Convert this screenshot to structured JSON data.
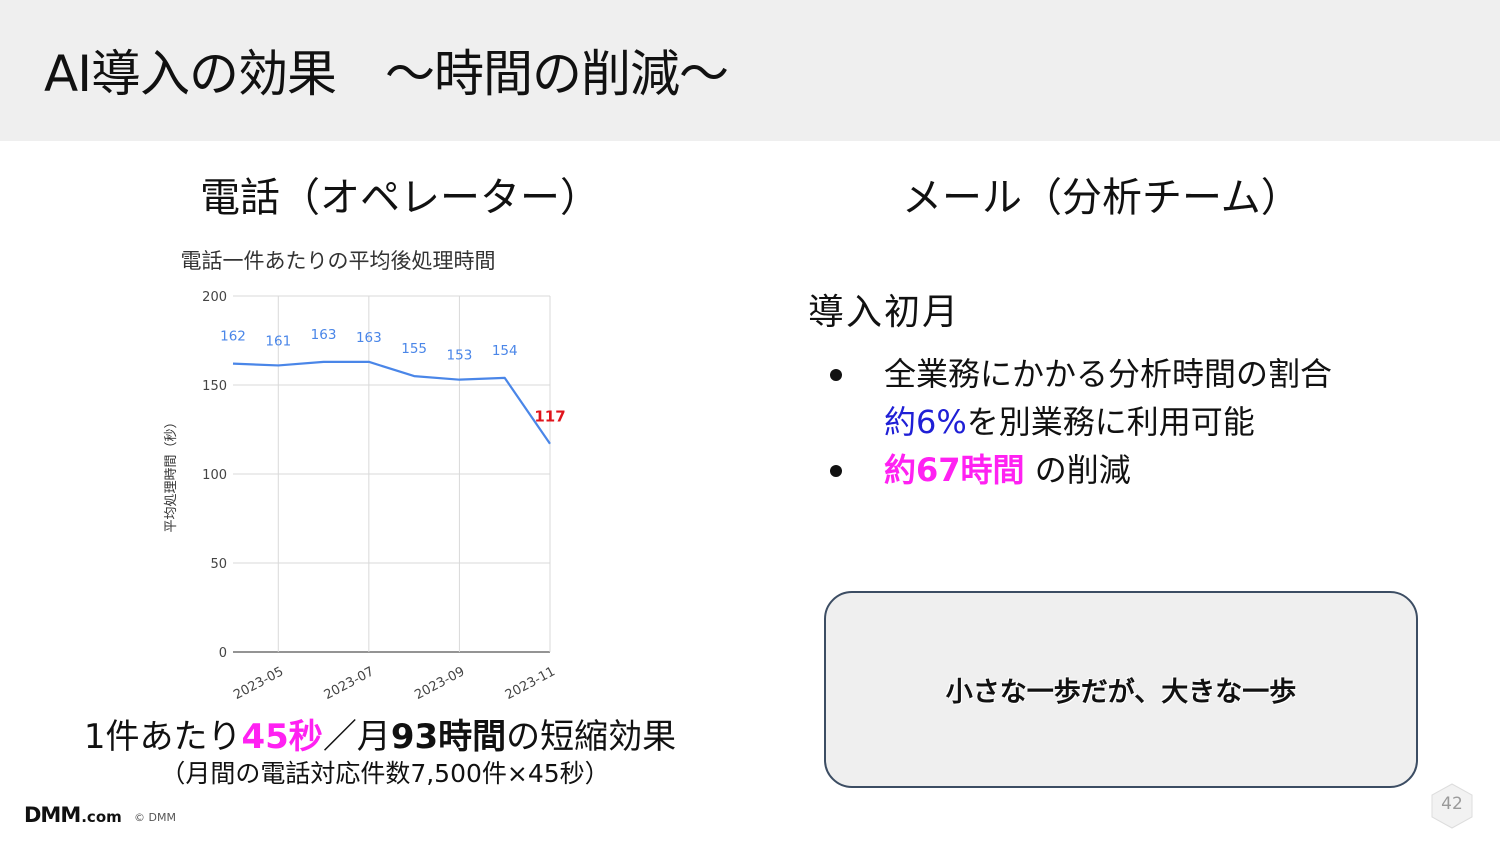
{
  "slide": {
    "title": "AI導入の効果　～時間の削減～",
    "page_number": "42"
  },
  "left": {
    "heading": "電話（オペレーター）",
    "summary": {
      "part1": "1件あたり",
      "part2": "45秒",
      "part3": "／月",
      "part4": "93時間",
      "part5": "の短縮効果"
    },
    "summary_sub": "（月間の電話対応件数7,500件×45秒）"
  },
  "right": {
    "heading": "メール（分析チーム）",
    "first_month": "導入初月",
    "bullets": [
      {
        "line1": "全業務にかかる分析時間の割合",
        "line2_highlight": "約6%",
        "line2_rest": "を別業務に利用可能"
      },
      {
        "highlight": "約67時間",
        "rest": "の削減"
      }
    ],
    "callout": "小さな一歩だが、大きな一歩"
  },
  "footer": {
    "logo_main": "DMM",
    "logo_suffix": ".com",
    "copyright": "© DMM"
  },
  "colors": {
    "header_band": "#efefef",
    "line": "#4a86e8",
    "highlight_label": "#e0141c",
    "magenta": "#ff21f2",
    "blue": "#1f1fd6"
  },
  "chart_data": {
    "type": "line",
    "title": "電話一件あたりの平均後処理時間",
    "xlabel": "",
    "ylabel": "平均処理時間（秒）",
    "ylim": [
      0,
      200
    ],
    "yticks": [
      0,
      50,
      100,
      150,
      200
    ],
    "x": [
      "2023-04",
      "2023-05",
      "2023-06",
      "2023-07",
      "2023-08",
      "2023-09",
      "2023-10",
      "2023-11"
    ],
    "xtick_labels": [
      "2023-05",
      "2023-07",
      "2023-09",
      "2023-11"
    ],
    "series": [
      {
        "values": [
          162,
          161,
          163,
          163,
          155,
          153,
          154,
          117
        ]
      }
    ],
    "data_labels": [
      "162",
      "161",
      "163",
      "163",
      "155",
      "153",
      "154",
      "117"
    ],
    "highlight_index": 7,
    "grid": true
  }
}
